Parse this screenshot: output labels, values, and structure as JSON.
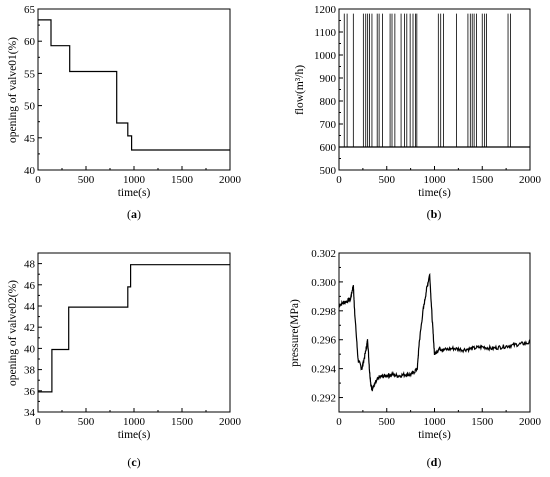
{
  "chart_data": [
    {
      "panel_id": "a",
      "caption": "a",
      "type": "line",
      "xlabel": "time(s)",
      "ylabel": "opening of valve01(%)",
      "xlim": [
        0,
        2000
      ],
      "ylim": [
        40,
        65
      ],
      "xticks": [
        0,
        500,
        1000,
        1500,
        2000
      ],
      "yticks": [
        40,
        45,
        50,
        55,
        60,
        65
      ],
      "series": [
        {
          "x": [
            0,
            135,
            135,
            330,
            330,
            820,
            820,
            935,
            935,
            975,
            975,
            2000
          ],
          "y": [
            63.3,
            63.3,
            59.3,
            59.3,
            55.3,
            55.3,
            47.3,
            47.3,
            45.3,
            45.3,
            43.1,
            43.1
          ]
        }
      ]
    },
    {
      "panel_id": "b",
      "caption": "b",
      "type": "line",
      "xlabel": "time(s)",
      "ylabel": "flow(m³/h)",
      "xlim": [
        0,
        2000
      ],
      "ylim": [
        500,
        1200
      ],
      "xticks": [
        0,
        500,
        1000,
        1500,
        2000
      ],
      "yticks": [
        500,
        600,
        700,
        800,
        900,
        1000,
        1100,
        1200
      ],
      "baseline": 600,
      "spike_peak": 1180,
      "spike_times": [
        55,
        85,
        150,
        255,
        280,
        300,
        320,
        345,
        400,
        420,
        455,
        535,
        555,
        585,
        650,
        685,
        710,
        745,
        775,
        800,
        815,
        1040,
        1065,
        1095,
        1230,
        1350,
        1375,
        1395,
        1415,
        1440,
        1500,
        1525,
        1545,
        1770,
        1795
      ]
    },
    {
      "panel_id": "c",
      "caption": "c",
      "type": "line",
      "xlabel": "time(s)",
      "ylabel": "opening of valve02(%)",
      "xlim": [
        0,
        2000
      ],
      "ylim": [
        34,
        49
      ],
      "xticks": [
        0,
        500,
        1000,
        1500,
        2000
      ],
      "yticks": [
        34,
        36,
        38,
        40,
        42,
        44,
        46,
        48
      ],
      "series": [
        {
          "x": [
            0,
            145,
            145,
            320,
            320,
            935,
            935,
            965,
            965,
            2000
          ],
          "y": [
            35.9,
            35.9,
            39.9,
            39.9,
            43.9,
            43.9,
            45.8,
            45.8,
            47.9,
            47.9
          ]
        }
      ]
    },
    {
      "panel_id": "d",
      "caption": "d",
      "type": "line",
      "xlabel": "time(s)",
      "ylabel": "pressure(MPa)",
      "xlim": [
        0,
        2000
      ],
      "ylim": [
        0.291,
        0.302
      ],
      "xticks": [
        0,
        500,
        1000,
        1500,
        2000
      ],
      "yticks": [
        0.292,
        0.294,
        0.296,
        0.298,
        0.3,
        0.302
      ],
      "ytick_labels": [
        "0.292",
        "0.294",
        "0.296",
        "0.298",
        "0.300",
        "0.302"
      ],
      "series": [
        {
          "x": [
            0,
            60,
            120,
            150,
            165,
            200,
            240,
            280,
            300,
            320,
            335,
            350,
            380,
            420,
            480,
            550,
            620,
            700,
            760,
            820,
            840,
            880,
            920,
            950,
            975,
            1000,
            1050,
            1100,
            1200,
            1300,
            1400,
            1500,
            1600,
            1700,
            1800,
            1900,
            2000
          ],
          "y": [
            0.2984,
            0.2986,
            0.2988,
            0.2998,
            0.2978,
            0.2946,
            0.294,
            0.2952,
            0.296,
            0.2938,
            0.2928,
            0.2926,
            0.293,
            0.2934,
            0.2935,
            0.2936,
            0.2935,
            0.2936,
            0.2936,
            0.294,
            0.2958,
            0.298,
            0.2996,
            0.3005,
            0.2975,
            0.295,
            0.2954,
            0.2953,
            0.2954,
            0.2953,
            0.2954,
            0.2955,
            0.2954,
            0.2955,
            0.2956,
            0.2957,
            0.2958
          ]
        }
      ]
    }
  ]
}
